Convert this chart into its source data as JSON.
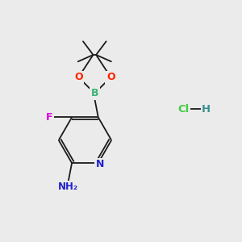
{
  "bg_color": "#ebebeb",
  "bond_color": "#1a1a1a",
  "bond_width": 1.3,
  "atom_colors": {
    "B": "#3cb371",
    "O": "#ff2200",
    "F": "#dd00dd",
    "N": "#2222cc",
    "C": "#1a1a1a",
    "H": "#3a9090",
    "Cl": "#44cc44"
  },
  "font_size": 8.5
}
